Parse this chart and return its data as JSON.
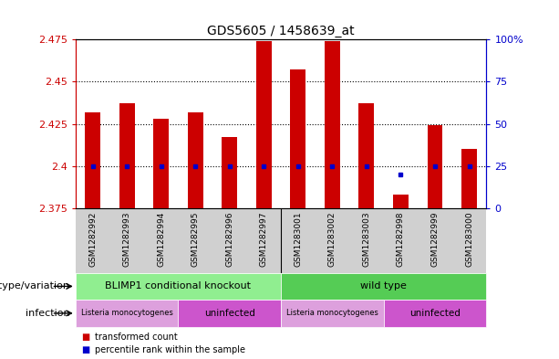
{
  "title": "GDS5605 / 1458639_at",
  "samples": [
    "GSM1282992",
    "GSM1282993",
    "GSM1282994",
    "GSM1282995",
    "GSM1282996",
    "GSM1282997",
    "GSM1283001",
    "GSM1283002",
    "GSM1283003",
    "GSM1282998",
    "GSM1282999",
    "GSM1283000"
  ],
  "transformed_counts": [
    2.432,
    2.437,
    2.428,
    2.432,
    2.417,
    2.474,
    2.457,
    2.474,
    2.437,
    2.383,
    2.424,
    2.41
  ],
  "percentile_values": [
    25,
    25,
    25,
    25,
    25,
    25,
    25,
    25,
    25,
    20,
    25,
    25
  ],
  "ylim": [
    2.375,
    2.475
  ],
  "yticks": [
    2.375,
    2.4,
    2.425,
    2.45,
    2.475
  ],
  "ytick_labels": [
    "2.375",
    "2.4",
    "2.425",
    "2.45",
    "2.475"
  ],
  "right_yticks": [
    0,
    25,
    50,
    75,
    100
  ],
  "right_ytick_labels": [
    "0",
    "25",
    "50",
    "75",
    "100%"
  ],
  "bar_color": "#cc0000",
  "dot_color": "#0000cc",
  "plot_bg_color": "#ffffff",
  "xtick_bg_color": "#d0d0d0",
  "left_axis_color": "#cc0000",
  "right_axis_color": "#0000cc",
  "genotype_groups": [
    {
      "label": "BLIMP1 conditional knockout",
      "start": 0,
      "end": 6,
      "color": "#90ee90"
    },
    {
      "label": "wild type",
      "start": 6,
      "end": 12,
      "color": "#55cc55"
    }
  ],
  "infection_groups": [
    {
      "label": "Listeria monocytogenes",
      "start": 0,
      "end": 3,
      "color": "#dda0dd"
    },
    {
      "label": "uninfected",
      "start": 3,
      "end": 6,
      "color": "#cc55cc"
    },
    {
      "label": "Listeria monocytogenes",
      "start": 6,
      "end": 9,
      "color": "#dda0dd"
    },
    {
      "label": "uninfected",
      "start": 9,
      "end": 12,
      "color": "#cc55cc"
    }
  ],
  "genotype_row_label": "genotype/variation",
  "infection_row_label": "infection",
  "legend_items": [
    {
      "label": "transformed count",
      "color": "#cc0000"
    },
    {
      "label": "percentile rank within the sample",
      "color": "#0000cc"
    }
  ]
}
